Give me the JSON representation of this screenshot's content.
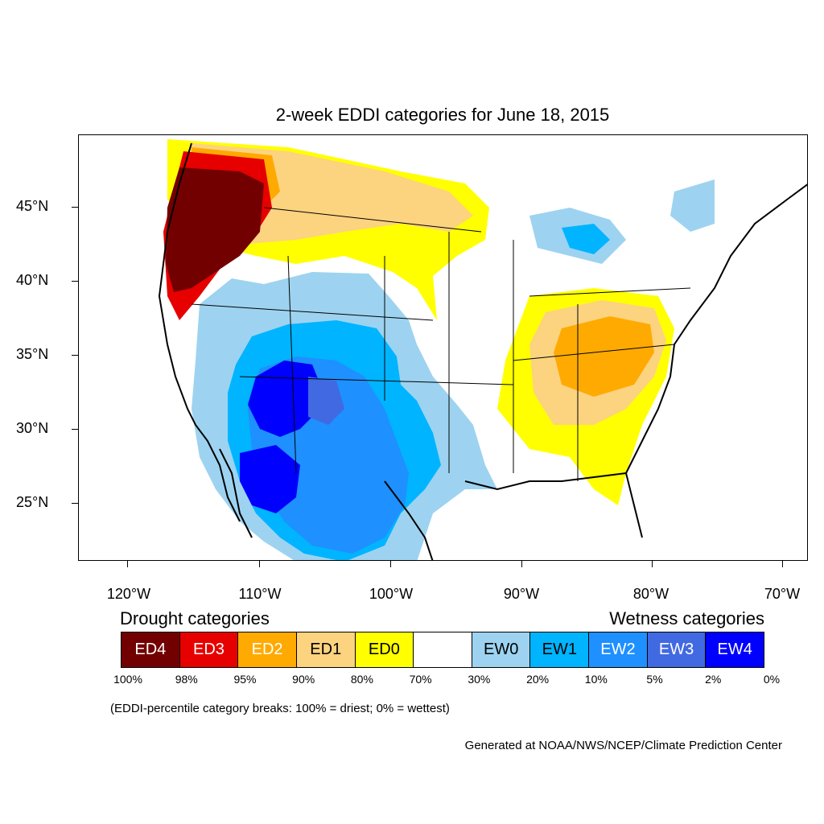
{
  "title": "2-week EDDI categories for June 18, 2015",
  "axes": {
    "latitude_labels": [
      "45°N",
      "40°N",
      "35°N",
      "30°N",
      "25°N"
    ],
    "longitude_labels": [
      "120°W",
      "110°W",
      "100°W",
      "90°W",
      "80°W",
      "70°W"
    ]
  },
  "legend": {
    "drought_heading": "Drought categories",
    "wetness_heading": "Wetness categories",
    "categories": [
      {
        "label": "ED4",
        "color": "#730000",
        "text_color": "#ffffff"
      },
      {
        "label": "ED3",
        "color": "#e60000",
        "text_color": "#ffffff"
      },
      {
        "label": "ED2",
        "color": "#ffaa00",
        "text_color": "#ffffff"
      },
      {
        "label": "ED1",
        "color": "#fcd37f",
        "text_color": "#000000"
      },
      {
        "label": "ED0",
        "color": "#ffff00",
        "text_color": "#000000"
      },
      {
        "label": "",
        "color": "#ffffff",
        "text_color": "#000000"
      },
      {
        "label": "EW0",
        "color": "#9dd3f0",
        "text_color": "#000000"
      },
      {
        "label": "EW1",
        "color": "#00b4ff",
        "text_color": "#000000"
      },
      {
        "label": "EW2",
        "color": "#1e90ff",
        "text_color": "#ffffff"
      },
      {
        "label": "EW3",
        "color": "#4169e1",
        "text_color": "#ffffff"
      },
      {
        "label": "EW4",
        "color": "#0000ff",
        "text_color": "#ffffff"
      }
    ],
    "percentiles": [
      "100%",
      "98%",
      "95%",
      "90%",
      "80%",
      "70%",
      "30%",
      "20%",
      "10%",
      "5%",
      "2%",
      "0%"
    ]
  },
  "note": "(EDDI-percentile category breaks: 100% = driest; 0% = wettest)",
  "credit": "Generated at NOAA/NWS/NCEP/Climate Prediction Center"
}
